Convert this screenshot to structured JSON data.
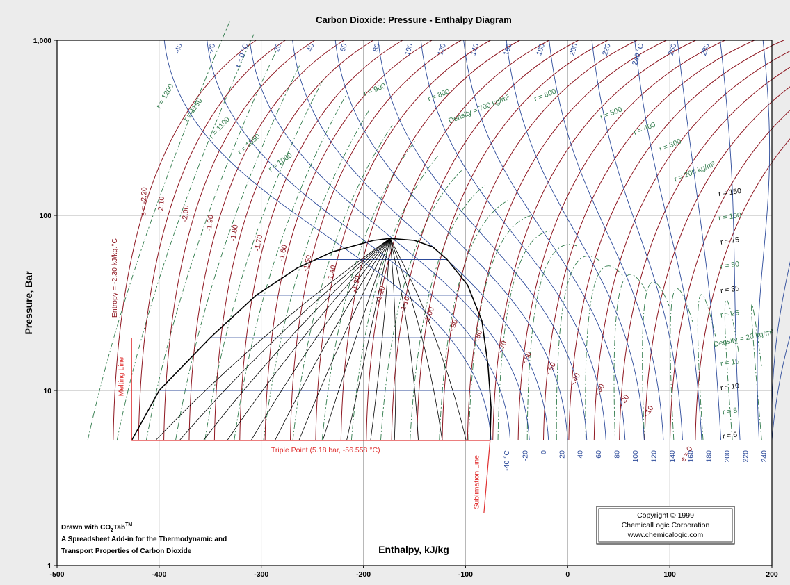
{
  "chart_data": {
    "type": "line",
    "title": "Carbon Dioxide: Pressure - Enthalpy Diagram",
    "xlabel": "Enthalpy, kJ/kg",
    "ylabel": "Pressure, Bar",
    "xlim": [
      -500,
      200
    ],
    "ylim": [
      1,
      1000
    ],
    "yscale": "log",
    "grid": true,
    "x_ticks": [
      "-500",
      "-400",
      "-300",
      "-200",
      "-100",
      "0",
      "100",
      "200"
    ],
    "y_ticks": [
      {
        "value": 1,
        "label": "1"
      },
      {
        "value": 10,
        "label": "10"
      },
      {
        "value": 100,
        "label": "100"
      },
      {
        "value": 1000,
        "label": "1,000"
      }
    ],
    "colors": {
      "isotherm": "#2c4a9a",
      "isentrope": "#8e1620",
      "isochore": "#2f7a4a",
      "dome": "#000000",
      "boundary": "#e03030",
      "quality": "#000000"
    },
    "saturation_dome": {
      "liquid": [
        [
          -427,
          5.18
        ],
        [
          -400,
          10
        ],
        [
          -350,
          20
        ],
        [
          -305,
          35
        ],
        [
          -265,
          50
        ],
        [
          -230,
          62
        ],
        [
          -190,
          72
        ],
        [
          -174,
          73.8
        ]
      ],
      "vapor": [
        [
          -174,
          73.8
        ],
        [
          -150,
          72
        ],
        [
          -132,
          66
        ],
        [
          -118,
          56
        ],
        [
          -98,
          40
        ],
        [
          -84,
          25
        ],
        [
          -78,
          14
        ],
        [
          -75,
          8
        ],
        [
          -76,
          5.18
        ]
      ]
    },
    "triple_point_line": {
      "label": "Triple Point (5.18 bar, -56.558 °C)",
      "pressure": 5.18,
      "h_from": -427,
      "h_to": -76
    },
    "melting_line": {
      "label": "Melting Line",
      "points": [
        [
          -427,
          5.18
        ],
        [
          -427,
          20
        ]
      ]
    },
    "sublimation_line": {
      "label": "Sublimation Line",
      "points": [
        [
          -76,
          5.18
        ],
        [
          -82,
          2.0
        ]
      ]
    },
    "isotherm_tie_lines": [
      {
        "pressure": 10.0,
        "h_from": -400,
        "h_to": -75
      },
      {
        "pressure": 20.0,
        "h_from": -350,
        "h_to": -77
      },
      {
        "pressure": 35.0,
        "h_from": -304,
        "h_to": -93
      },
      {
        "pressure": 56.0,
        "h_from": -245,
        "h_to": -118
      }
    ],
    "isotherm_labels": [
      "-40 °C",
      "-20",
      "0",
      "20",
      "40",
      "60",
      "80",
      "100",
      "120",
      "140",
      "160",
      "180",
      "200",
      "220",
      "240"
    ],
    "isotherm_top_labels": [
      "-40",
      "-20",
      "t = 0 °C",
      "20",
      "40",
      "60",
      "80",
      "100",
      "120",
      "140",
      "160",
      "180",
      "200",
      "220",
      "240 °C",
      "260",
      "280"
    ],
    "isentrope_labels": [
      "Entropy = -2.30 kJ/kg.°C",
      "s = -2.20",
      "-2.10",
      "-2.00",
      "-1.90",
      "-1.80",
      "-1.70",
      "-1.60",
      "-1.50",
      "-1.40",
      "-1.30",
      "-1.20",
      "-1.10",
      "-1.00",
      "-.90",
      "-.80",
      "-.70",
      "-.60",
      "-.50",
      "-.40",
      "-.30",
      "-.20",
      "-.10",
      "s = 0"
    ],
    "isochore_labels": [
      "r = 1200",
      "r = 1150",
      "r = 1100",
      "r = 1050",
      "r = 1000",
      "r = 900",
      "r = 800",
      "Density = 700 kg/m3",
      "r = 600",
      "r = 500",
      "r = 400",
      "r = 300",
      "r = 200 kg/m3",
      "r = 150",
      "r = 100",
      "r = 75",
      "r = 50",
      "r = 35",
      "r = 25",
      "Density = 20 kg/m3",
      "r = 15",
      "r = 10",
      "r = 8",
      "r = 6"
    ]
  },
  "credit": {
    "line1": "Drawn with CO",
    "line1_sub": "2",
    "line1_tab": "Tab",
    "line1_sup": "TM",
    "line2": "A Spreadsheet Add-in for the Thermodynamic and",
    "line3": "Transport Properties of Carbon Dioxide"
  },
  "copyright": {
    "line1": "Copyright © 1999",
    "line2": "ChemicalLogic Corporation",
    "line3": "www.chemicalogic.com"
  }
}
